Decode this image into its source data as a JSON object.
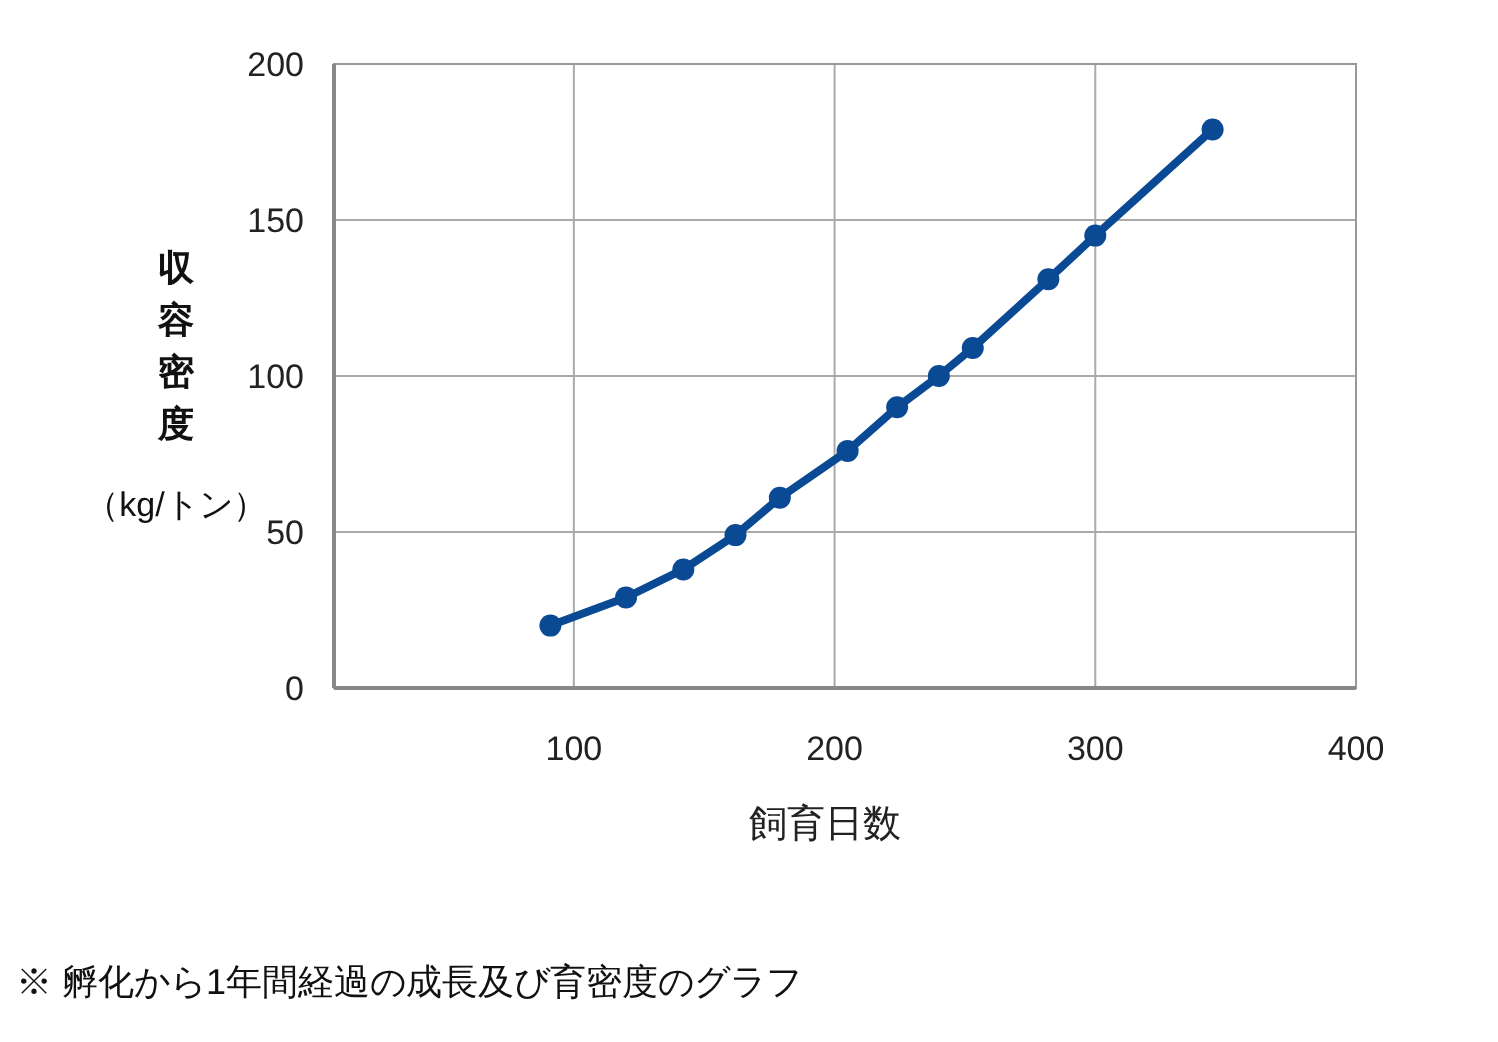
{
  "chart_data": {
    "type": "line",
    "xlabel": "飼育日数",
    "ylabel": "収容密度（kg/トン）",
    "annotations": [
      "※ 孵化から1年間経過の成長及び育密度のグラフ"
    ],
    "x": [
      91,
      120,
      142,
      162,
      179,
      205,
      224,
      240,
      253,
      282,
      300,
      345
    ],
    "series": [
      {
        "color": "#0a4a94",
        "values": [
          20,
          29,
          38,
          49,
          61,
          76,
          90,
          100,
          109,
          131,
          145,
          179
        ]
      }
    ],
    "xlim": [
      8,
      400
    ],
    "xticks": [
      100,
      200,
      300,
      400
    ],
    "ylim": [
      0,
      200
    ],
    "yticks": [
      0,
      50,
      100,
      150,
      200
    ],
    "grid": true,
    "marker": "circle",
    "line_style": "solid"
  }
}
